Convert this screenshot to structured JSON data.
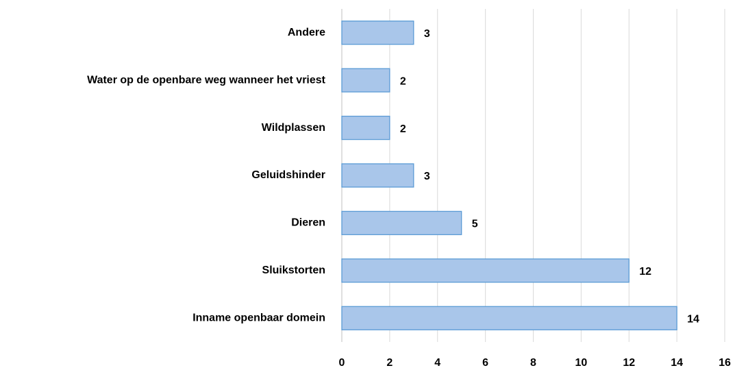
{
  "chart_data": {
    "type": "bar",
    "orientation": "horizontal",
    "categories": [
      "Andere",
      "Water op de openbare weg wanneer het vriest",
      "Wildplassen",
      "Geluidshinder",
      "Dieren",
      "Sluikstorten",
      "Inname openbaar domein"
    ],
    "values": [
      3,
      2,
      2,
      3,
      5,
      12,
      14
    ],
    "color": "#a9c6ea",
    "xlim": [
      0,
      16
    ],
    "xticks": [
      0,
      2,
      4,
      6,
      8,
      10,
      12,
      14,
      16
    ],
    "grid": true
  }
}
